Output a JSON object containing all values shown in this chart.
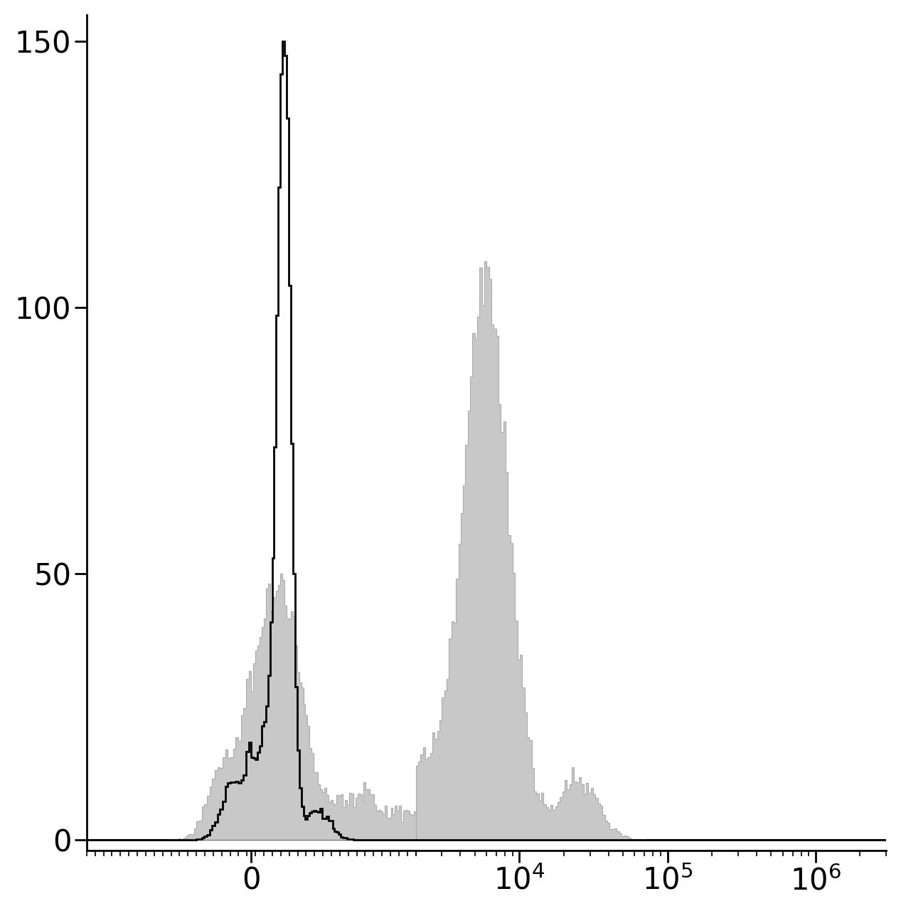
{
  "background_color": "#ffffff",
  "black_color": "#000000",
  "gray_fill_color": "#c8c8c8",
  "gray_edge_color": "#aaaaaa",
  "black_linewidth": 2.0,
  "gray_linewidth": 0.8,
  "ylim": [
    -2,
    155
  ],
  "yticks": [
    0,
    50,
    100,
    150
  ],
  "tick_labelsize": 30,
  "linthresh": 2000,
  "linscale": 1.0,
  "seed": 7,
  "n_cells": 50000,
  "unstained_scale_target": 150,
  "stained_first_peak_target": 50,
  "xlim_low": -2000,
  "xlim_high": 3000000,
  "figsize": [
    12.67,
    12.8
  ],
  "dpi": 100,
  "n_bins": 400
}
